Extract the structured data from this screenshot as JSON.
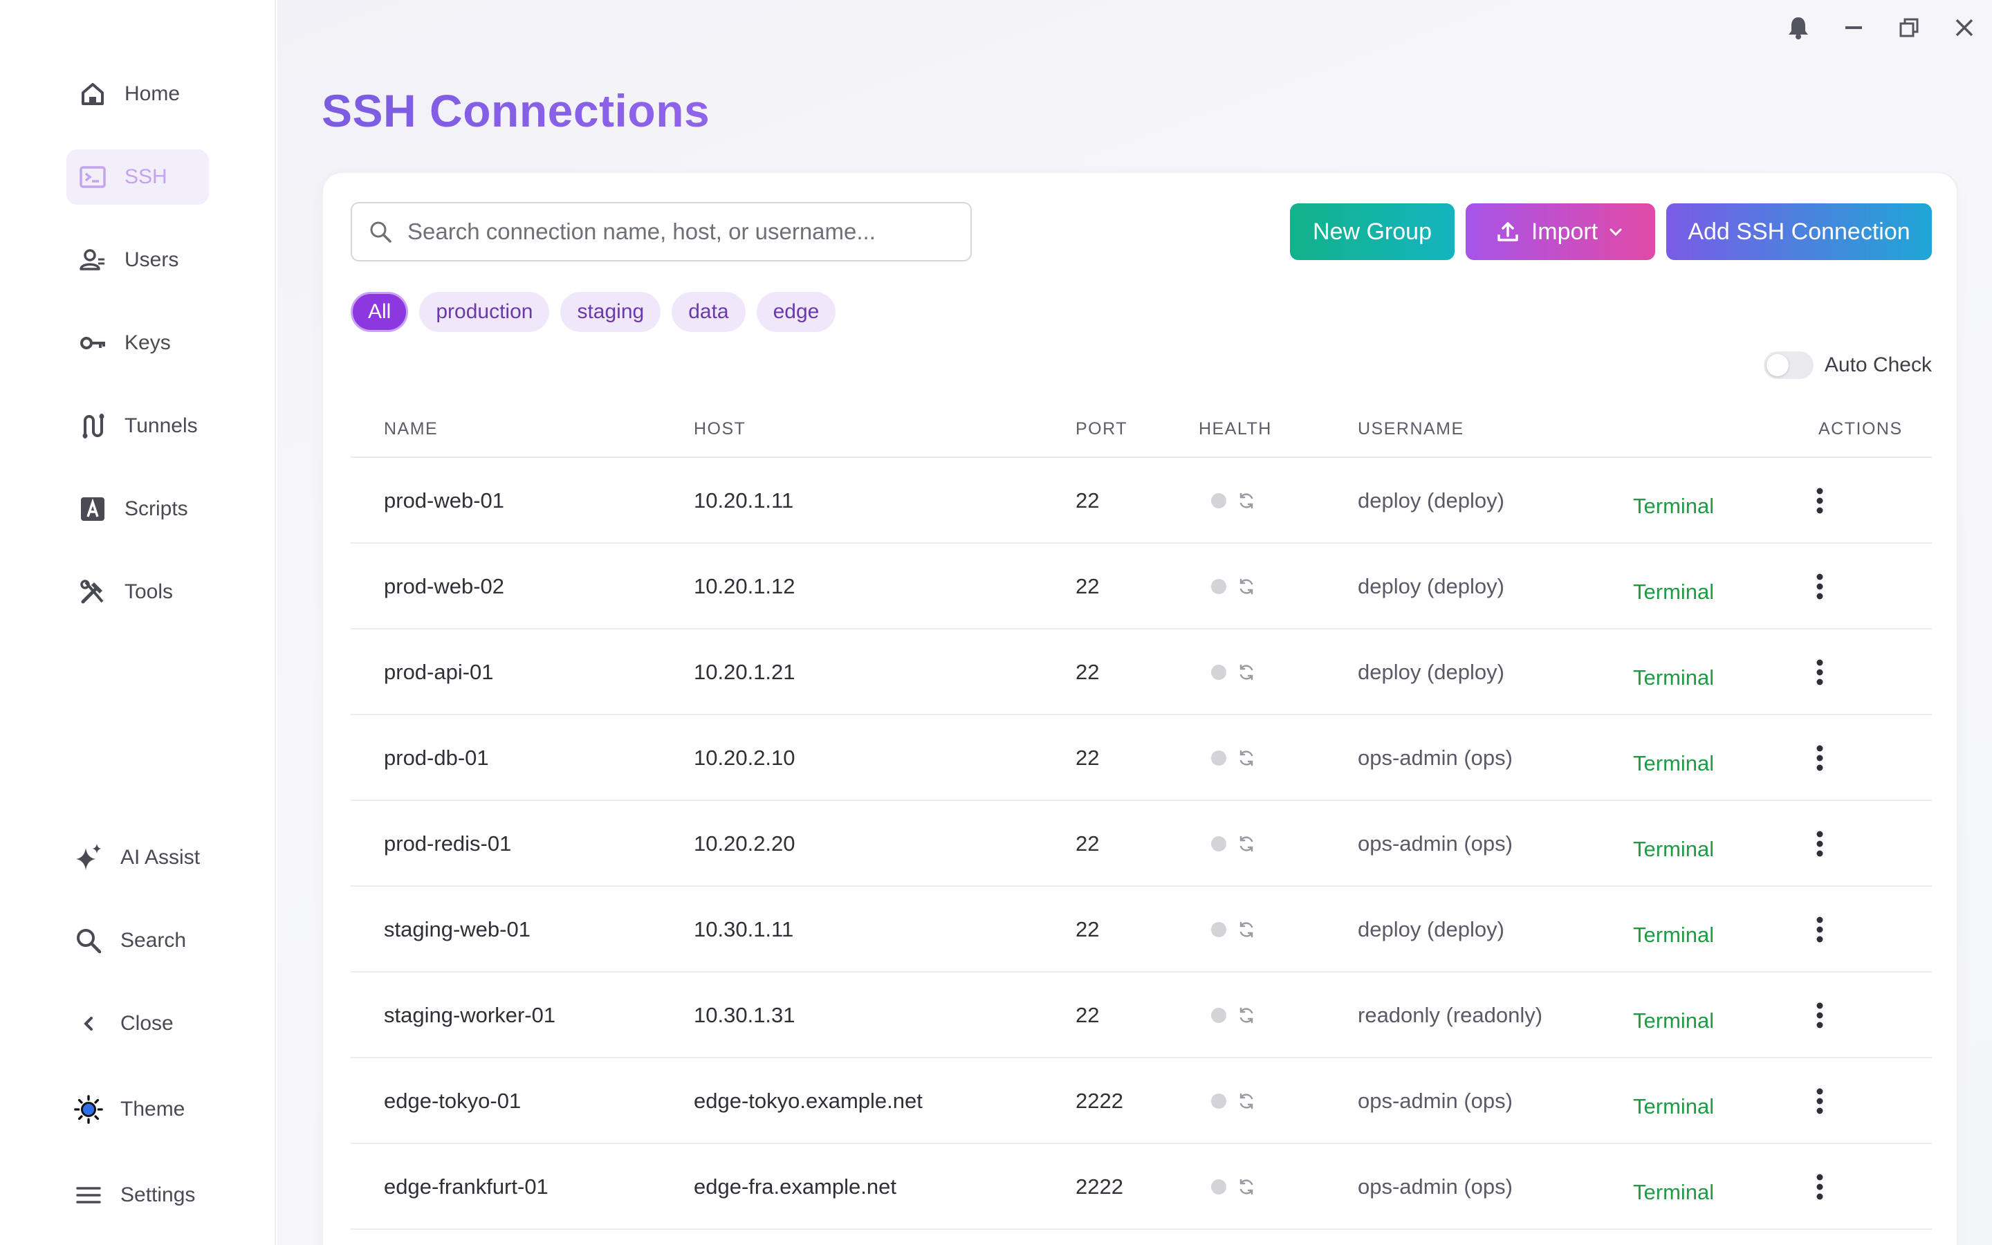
{
  "sidebar": {
    "items": [
      {
        "label": "Home",
        "icon": "home-icon"
      },
      {
        "label": "SSH",
        "icon": "terminal-icon",
        "active": true
      },
      {
        "label": "Users",
        "icon": "users-icon"
      },
      {
        "label": "Keys",
        "icon": "key-icon"
      },
      {
        "label": "Tunnels",
        "icon": "tunnel-icon"
      },
      {
        "label": "Scripts",
        "icon": "script-icon"
      },
      {
        "label": "Tools",
        "icon": "tools-icon"
      }
    ],
    "bottom": [
      {
        "label": "AI Assist",
        "icon": "sparkle-icon"
      },
      {
        "label": "Search",
        "icon": "search-icon"
      },
      {
        "label": "Close",
        "icon": "chevron-left-icon"
      },
      {
        "label": "Theme",
        "icon": "sun-icon"
      },
      {
        "label": "Settings",
        "icon": "menu-icon"
      }
    ]
  },
  "window": {
    "controls": [
      "bell-icon",
      "minimize-icon",
      "restore-icon",
      "close-icon"
    ]
  },
  "page": {
    "title": "SSH Connections"
  },
  "search": {
    "placeholder": "Search connection name, host, or username..."
  },
  "toolbar": {
    "new_group_label": "New Group",
    "import_label": "Import",
    "add_label": "Add SSH Connection"
  },
  "filters": [
    "All",
    "production",
    "staging",
    "data",
    "edge"
  ],
  "active_filter": "All",
  "auto_check": {
    "label": "Auto Check",
    "enabled": false
  },
  "table": {
    "columns": [
      "NAME",
      "HOST",
      "PORT",
      "HEALTH",
      "USERNAME",
      "ACTIONS"
    ],
    "action_label": "Terminal",
    "rows": [
      {
        "name": "prod-web-01",
        "host": "10.20.1.11",
        "port": "22",
        "username": "deploy (deploy)"
      },
      {
        "name": "prod-web-02",
        "host": "10.20.1.12",
        "port": "22",
        "username": "deploy (deploy)"
      },
      {
        "name": "prod-api-01",
        "host": "10.20.1.21",
        "port": "22",
        "username": "deploy (deploy)"
      },
      {
        "name": "prod-db-01",
        "host": "10.20.2.10",
        "port": "22",
        "username": "ops-admin (ops)"
      },
      {
        "name": "prod-redis-01",
        "host": "10.20.2.20",
        "port": "22",
        "username": "ops-admin (ops)"
      },
      {
        "name": "staging-web-01",
        "host": "10.30.1.11",
        "port": "22",
        "username": "deploy (deploy)"
      },
      {
        "name": "staging-worker-01",
        "host": "10.30.1.31",
        "port": "22",
        "username": "readonly (readonly)"
      },
      {
        "name": "edge-tokyo-01",
        "host": "edge-tokyo.example.net",
        "port": "2222",
        "username": "ops-admin (ops)"
      },
      {
        "name": "edge-frankfurt-01",
        "host": "edge-fra.example.net",
        "port": "2222",
        "username": "ops-admin (ops)"
      }
    ]
  },
  "colors": {
    "accent": "#7c5cdf",
    "terminal_link": "#1d9b45",
    "chip_bg": "#f0e7fb",
    "chip_active": "#8d37e1",
    "new_group": "#12b28a",
    "import": "#a654e8",
    "add": "#7a5be6"
  }
}
